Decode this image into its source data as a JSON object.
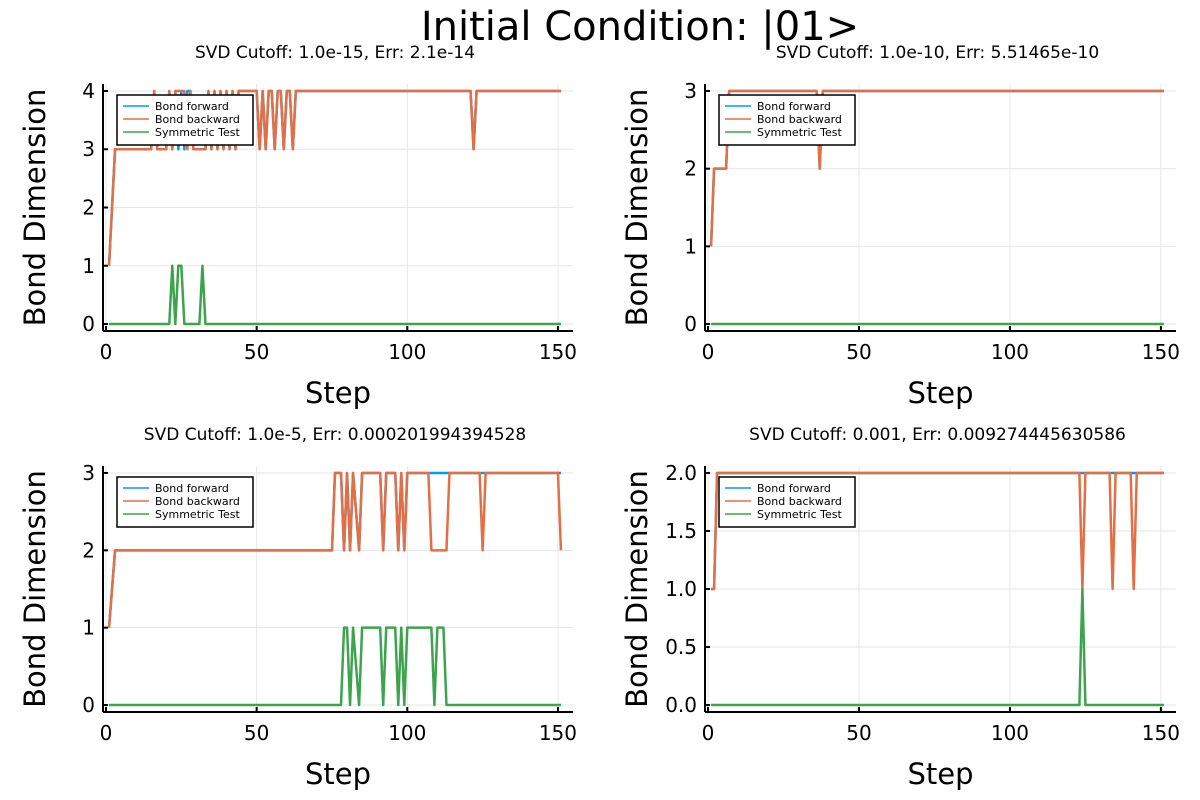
{
  "suptitle": "Initial Condition: |01>",
  "colors": {
    "forward": "#009af9",
    "backward": "#e26f46",
    "symmetric": "#3da44d"
  },
  "chart_data": [
    {
      "type": "line",
      "title": "SVD Cutoff: 1.0e-15, Err: 2.1e-14",
      "xlabel": "Step",
      "ylabel": "Bond Dimension",
      "xlim": [
        -1,
        155
      ],
      "ylim": [
        -0.12,
        4.12
      ],
      "xticks": [
        0,
        50,
        100,
        150
      ],
      "xtick_labels": [
        "0",
        "50",
        "100",
        "150"
      ],
      "yticks": [
        0,
        1,
        2,
        3,
        4
      ],
      "ytick_labels": [
        "0",
        "1",
        "2",
        "3",
        "4"
      ],
      "grid": true,
      "legend_position": "top-left",
      "series": [
        {
          "name": "Bond forward",
          "x": [
            1,
            3,
            15,
            16,
            17,
            20,
            21,
            22,
            23,
            24,
            25,
            26,
            27,
            28,
            29,
            33,
            34,
            35,
            36,
            37,
            38,
            39,
            40,
            41,
            42,
            43,
            44,
            45,
            50,
            51,
            52,
            53,
            54,
            55,
            56,
            57,
            58,
            59,
            60,
            61,
            62,
            63,
            121,
            122,
            123,
            151
          ],
          "y": [
            1,
            3,
            3,
            4,
            3,
            3,
            4,
            3,
            4,
            3,
            4,
            3,
            4,
            4,
            3,
            3,
            4,
            3,
            4,
            3,
            4,
            3,
            4,
            3,
            4,
            3,
            4,
            4,
            4,
            3,
            4,
            3,
            4,
            4,
            3,
            4,
            4,
            3,
            4,
            4,
            3,
            4,
            4,
            3,
            4,
            4
          ]
        },
        {
          "name": "Bond backward",
          "x": [
            1,
            3,
            15,
            16,
            17,
            20,
            21,
            22,
            23,
            26,
            27,
            28,
            29,
            33,
            34,
            35,
            36,
            37,
            38,
            39,
            40,
            41,
            42,
            43,
            44,
            45,
            50,
            51,
            52,
            53,
            54,
            55,
            56,
            57,
            58,
            59,
            60,
            61,
            62,
            63,
            121,
            122,
            123,
            151
          ],
          "y": [
            1,
            3,
            3,
            4,
            3,
            3,
            4,
            3,
            4,
            4,
            3,
            4,
            3,
            3,
            4,
            3,
            4,
            3,
            4,
            3,
            4,
            3,
            4,
            3,
            4,
            4,
            4,
            3,
            4,
            3,
            4,
            4,
            3,
            4,
            4,
            3,
            4,
            4,
            3,
            4,
            4,
            3,
            4,
            4
          ]
        },
        {
          "name": "Symmetric Test",
          "x": [
            1,
            21,
            22,
            23,
            24,
            25,
            26,
            31,
            32,
            33,
            151
          ],
          "y": [
            0,
            0,
            1,
            0,
            1,
            1,
            0,
            0,
            1,
            0,
            0
          ]
        }
      ]
    },
    {
      "type": "line",
      "title": "SVD Cutoff: 1.0e-10, Err: 5.51465e-10",
      "xlabel": "Step",
      "ylabel": "Bond Dimension",
      "xlim": [
        -1,
        155
      ],
      "ylim": [
        -0.09,
        3.09
      ],
      "xticks": [
        0,
        50,
        100,
        150
      ],
      "xtick_labels": [
        "0",
        "50",
        "100",
        "150"
      ],
      "yticks": [
        0,
        1,
        2,
        3
      ],
      "ytick_labels": [
        "0",
        "1",
        "2",
        "3"
      ],
      "grid": true,
      "legend_position": "top-left",
      "series": [
        {
          "name": "Bond forward",
          "x": [
            1,
            2,
            6,
            7,
            36,
            37,
            38,
            151
          ],
          "y": [
            1,
            2,
            2,
            3,
            3,
            2,
            3,
            3
          ]
        },
        {
          "name": "Bond backward",
          "x": [
            1,
            2,
            6,
            7,
            36,
            37,
            38,
            151
          ],
          "y": [
            1,
            2,
            2,
            3,
            3,
            2,
            3,
            3
          ]
        },
        {
          "name": "Symmetric Test",
          "x": [
            1,
            151
          ],
          "y": [
            0,
            0
          ]
        }
      ]
    },
    {
      "type": "line",
      "title": "SVD Cutoff: 1.0e-5, Err: 0.000201994394528",
      "xlabel": "Step",
      "ylabel": "Bond Dimension",
      "xlim": [
        -1,
        155
      ],
      "ylim": [
        -0.09,
        3.09
      ],
      "xticks": [
        0,
        50,
        100,
        150
      ],
      "xtick_labels": [
        "0",
        "50",
        "100",
        "150"
      ],
      "yticks": [
        0,
        1,
        2,
        3
      ],
      "ytick_labels": [
        "0",
        "1",
        "2",
        "3"
      ],
      "grid": true,
      "legend_position": "top-left",
      "series": [
        {
          "name": "Bond forward",
          "x": [
            1,
            3,
            75,
            76,
            78,
            79,
            80,
            81,
            82,
            84,
            85,
            86,
            91,
            92,
            93,
            96,
            97,
            98,
            99,
            100,
            151
          ],
          "y": [
            1,
            2,
            2,
            3,
            3,
            2,
            3,
            2,
            3,
            2,
            3,
            3,
            3,
            2,
            3,
            3,
            2,
            3,
            2,
            3,
            3
          ]
        },
        {
          "name": "Bond backward",
          "x": [
            1,
            3,
            75,
            76,
            78,
            79,
            80,
            81,
            82,
            84,
            85,
            86,
            91,
            92,
            93,
            96,
            97,
            98,
            99,
            100,
            107,
            108,
            113,
            114,
            115,
            124,
            125,
            126,
            150,
            151
          ],
          "y": [
            1,
            2,
            2,
            3,
            3,
            2,
            3,
            2,
            3,
            2,
            3,
            3,
            3,
            2,
            3,
            3,
            2,
            3,
            2,
            3,
            3,
            2,
            2,
            3,
            3,
            3,
            2,
            3,
            3,
            2
          ]
        },
        {
          "name": "Symmetric Test",
          "x": [
            1,
            78,
            79,
            80,
            81,
            82,
            84,
            85,
            86,
            91,
            92,
            93,
            96,
            97,
            98,
            99,
            100,
            107,
            108,
            109,
            110,
            112,
            113,
            114,
            151
          ],
          "y": [
            0,
            0,
            1,
            1,
            0,
            1,
            0,
            1,
            1,
            1,
            0,
            1,
            1,
            0,
            1,
            0,
            1,
            1,
            1,
            0,
            1,
            1,
            0,
            0,
            0
          ]
        }
      ]
    },
    {
      "type": "line",
      "title": "SVD Cutoff: 0.001, Err: 0.009274445630586",
      "xlabel": "Step",
      "ylabel": "Bond Dimension",
      "xlim": [
        -1,
        155
      ],
      "ylim": [
        -0.06,
        2.06
      ],
      "xticks": [
        0,
        50,
        100,
        150
      ],
      "xtick_labels": [
        "0",
        "50",
        "100",
        "150"
      ],
      "yticks": [
        0,
        0.5,
        1,
        1.5,
        2
      ],
      "ytick_labels": [
        "0.0",
        "0.5",
        "1.0",
        "1.5",
        "2.0"
      ],
      "grid": true,
      "legend_position": "top-left",
      "series": [
        {
          "name": "Bond forward",
          "x": [
            1,
            2,
            3,
            123,
            124,
            125,
            151
          ],
          "y": [
            1,
            1,
            2,
            2,
            2,
            2,
            2
          ]
        },
        {
          "name": "Bond backward",
          "x": [
            1,
            2,
            3,
            123,
            124,
            125,
            133,
            134,
            135,
            140,
            141,
            142,
            151
          ],
          "y": [
            1,
            1,
            2,
            2,
            1,
            2,
            2,
            1,
            2,
            2,
            1,
            2,
            2
          ]
        },
        {
          "name": "Symmetric Test",
          "x": [
            1,
            123,
            124,
            125,
            151
          ],
          "y": [
            0,
            0,
            1,
            0,
            0
          ]
        }
      ]
    }
  ]
}
